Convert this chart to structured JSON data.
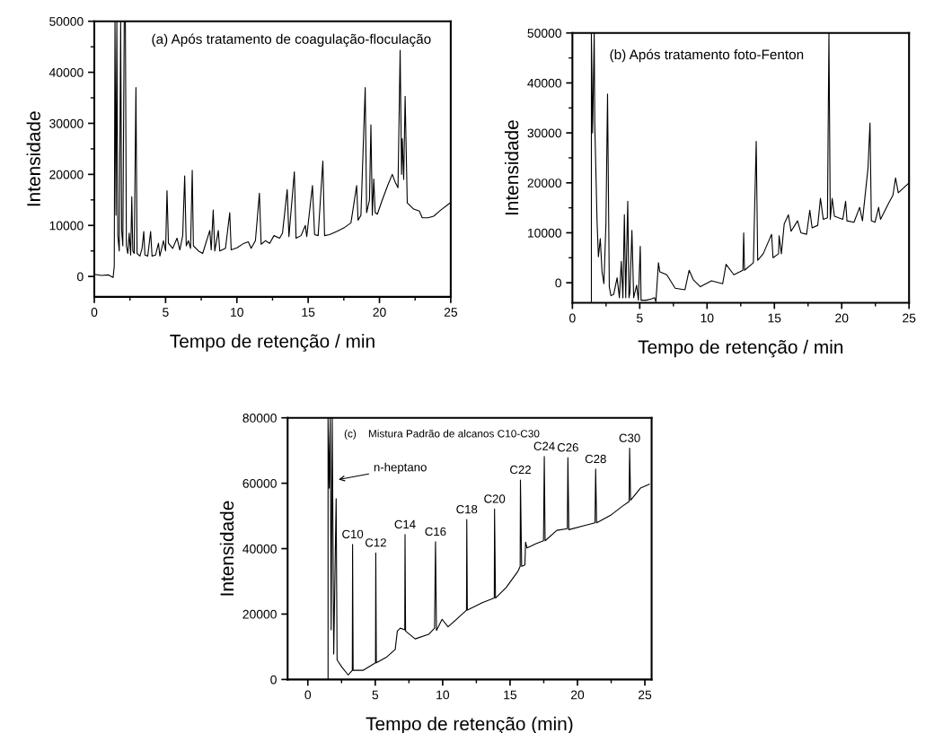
{
  "chart_data": [
    {
      "type": "line",
      "xlabel": "Tempo de retenção / min",
      "ylabel": "Intensidade",
      "annotations": [
        "(a) Após tratamento de coagulação-floculação"
      ],
      "xlim": [
        0,
        25
      ],
      "ylim": [
        -4000,
        50000
      ],
      "xticks": [
        0,
        {
          "value": 2.5,
          "label": null
        },
        5,
        {
          "value": 7.5,
          "label": null
        },
        10,
        {
          "value": 12.5,
          "label": null
        },
        15,
        {
          "value": 17.5,
          "label": null
        },
        20,
        {
          "value": 22.5,
          "label": null
        },
        25
      ],
      "yticks": [
        0,
        {
          "value": 5000,
          "label": null
        },
        10000,
        {
          "value": 15000,
          "label": null
        },
        20000,
        {
          "value": 25000,
          "label": null
        },
        30000,
        {
          "value": 35000,
          "label": null
        },
        40000,
        {
          "value": 45000,
          "label": null
        },
        50000
      ],
      "grid": false,
      "legend": false,
      "marker": "none",
      "line_style": "solid",
      "series": [
        {
          "color": "#000000",
          "x": [
            0,
            0.5,
            1.0,
            1.32,
            1.4,
            1.45,
            1.52,
            1.58,
            1.65,
            1.75,
            1.85,
            1.92,
            2.0,
            2.1,
            2.18,
            2.25,
            2.35,
            2.45,
            2.55,
            2.63,
            2.7,
            2.8,
            2.92,
            3.0,
            3.2,
            3.35,
            3.47,
            3.55,
            3.75,
            3.95,
            4.05,
            4.3,
            4.5,
            4.6,
            4.85,
            5.0,
            5.1,
            5.2,
            5.5,
            5.8,
            6.0,
            6.2,
            6.34,
            6.45,
            6.6,
            6.75,
            6.87,
            6.95,
            7.3,
            7.6,
            8.1,
            8.2,
            8.34,
            8.45,
            8.7,
            8.8,
            9.2,
            9.5,
            9.6,
            10.0,
            10.5,
            10.8,
            11.0,
            11.3,
            11.58,
            11.7,
            12.0,
            12.3,
            12.6,
            13.0,
            13.2,
            13.53,
            13.65,
            14.03,
            14.15,
            14.5,
            14.8,
            14.9,
            15.3,
            15.45,
            15.7,
            16.03,
            16.15,
            16.5,
            17.0,
            17.5,
            18.0,
            18.4,
            18.5,
            18.7,
            19.0,
            19.1,
            19.3,
            19.4,
            19.5,
            19.6,
            19.7,
            19.85,
            20.2,
            20.6,
            20.9,
            21.1,
            21.3,
            21.45,
            21.55,
            21.6,
            21.7,
            21.8,
            21.95,
            22.4,
            22.8,
            23.0,
            23.4,
            23.8,
            24.3,
            25.0
          ],
          "values": [
            400,
            200,
            300,
            -200,
            2000,
            50000,
            12000,
            50000,
            8000,
            5000,
            50000,
            9000,
            6000,
            50000,
            50000,
            6000,
            4500,
            8500,
            4200,
            15600,
            5000,
            4500,
            37000,
            4500,
            4000,
            5500,
            8800,
            4200,
            4000,
            8800,
            4000,
            4200,
            6500,
            4000,
            7000,
            5000,
            16800,
            6500,
            5500,
            7500,
            5200,
            8000,
            19700,
            6000,
            7000,
            5500,
            20800,
            6000,
            5000,
            4500,
            9000,
            5200,
            13000,
            5000,
            9000,
            5000,
            5500,
            12500,
            5200,
            5600,
            6500,
            6800,
            5500,
            7000,
            16300,
            6300,
            7000,
            6500,
            8000,
            7500,
            8500,
            17000,
            7800,
            20500,
            7500,
            8000,
            10000,
            7800,
            17800,
            8200,
            8000,
            22600,
            8000,
            8200,
            8800,
            9500,
            10500,
            17800,
            11000,
            12000,
            37000,
            12500,
            15000,
            29700,
            12000,
            19100,
            12500,
            12200,
            15000,
            18000,
            20000,
            18500,
            17400,
            44300,
            20000,
            27000,
            19000,
            35300,
            14400,
            13200,
            12800,
            11500,
            11500,
            11800,
            13000,
            14500
          ]
        }
      ]
    },
    {
      "type": "line",
      "xlabel": "Tempo de retenção / min",
      "ylabel": "Intensidade",
      "annotations": [
        "(b) Após tratamento foto-Fenton"
      ],
      "xlim": [
        0,
        25
      ],
      "ylim": [
        -4000,
        50000
      ],
      "xticks": [
        0,
        {
          "value": 2.5,
          "label": null
        },
        5,
        {
          "value": 7.5,
          "label": null
        },
        10,
        {
          "value": 12.5,
          "label": null
        },
        15,
        {
          "value": 17.5,
          "label": null
        },
        20,
        {
          "value": 22.5,
          "label": null
        },
        25
      ],
      "yticks": [
        0,
        {
          "value": 5000,
          "label": null
        },
        10000,
        {
          "value": 15000,
          "label": null
        },
        20000,
        {
          "value": 25000,
          "label": null
        },
        30000,
        {
          "value": 35000,
          "label": null
        },
        40000,
        {
          "value": 45000,
          "label": null
        },
        50000
      ],
      "grid": false,
      "legend": false,
      "marker": "none",
      "line_style": "solid",
      "series": [
        {
          "color": "#000000",
          "x": [
            1.41,
            1.41,
            1.5,
            1.62,
            1.66,
            1.83,
            1.93,
            2.07,
            2.2,
            2.34,
            2.49,
            2.61,
            2.74,
            2.86,
            3.07,
            3.32,
            3.49,
            3.63,
            3.75,
            3.86,
            3.96,
            4.11,
            4.2,
            4.27,
            4.42,
            4.55,
            4.77,
            4.9,
            5.04,
            5.1,
            5.5,
            5.9,
            6.1,
            6.2,
            6.39,
            6.49,
            7.01,
            7.63,
            8.36,
            8.67,
            8.98,
            9.5,
            10.33,
            11.16,
            11.41,
            11.99,
            12.66,
            12.72,
            12.78,
            13.44,
            13.65,
            13.76,
            14.17,
            14.79,
            14.9,
            15.31,
            15.35,
            15.52,
            15.73,
            16.04,
            16.24,
            16.72,
            16.97,
            17.39,
            17.63,
            17.8,
            18.22,
            18.42,
            18.63,
            18.94,
            19.05,
            19.15,
            19.29,
            19.46,
            20.08,
            20.29,
            20.39,
            20.91,
            21.33,
            21.54,
            21.95,
            22.1,
            22.2,
            22.47,
            22.74,
            22.88,
            23.5,
            23.8,
            24.0,
            24.2,
            24.6,
            25.0
          ],
          "values": [
            -4000,
            50000,
            30000,
            50000,
            32000,
            12400,
            5200,
            8800,
            2200,
            -200,
            11800,
            37800,
            -800,
            -2600,
            -2300,
            1000,
            -3000,
            4300,
            -3000,
            13600,
            -3000,
            16300,
            -3000,
            -2000,
            10500,
            -3000,
            -500,
            -3500,
            7300,
            -3500,
            -3500,
            -3200,
            -3000,
            -3800,
            4000,
            2200,
            1600,
            -1100,
            -1400,
            2500,
            600,
            -800,
            400,
            -200,
            3700,
            1600,
            2500,
            10000,
            2500,
            4000,
            28300,
            4500,
            5800,
            9700,
            5000,
            5800,
            9400,
            5800,
            11800,
            13600,
            10300,
            12400,
            10000,
            9700,
            14500,
            11000,
            11500,
            16900,
            12700,
            13000,
            50000,
            12700,
            16900,
            13300,
            12700,
            16300,
            12400,
            12100,
            15100,
            12400,
            22900,
            32000,
            12400,
            12100,
            15100,
            12700,
            16000,
            17500,
            21000,
            18000,
            19000,
            20000
          ]
        }
      ]
    },
    {
      "type": "line",
      "xlabel": "Tempo de retenção (min)",
      "ylabel": "Intensidade",
      "annotations": [
        "(c)    Mistura Padrão de alcanos C10-C30",
        {
          "text": "n-heptano",
          "x": 2.1,
          "y": 61000
        },
        {
          "text": "C10",
          "x": 3.32,
          "y": 41300
        },
        {
          "text": "C12",
          "x": 5.04,
          "y": 38700
        },
        {
          "text": "C14",
          "x": 7.21,
          "y": 44300
        },
        {
          "text": "C16",
          "x": 9.47,
          "y": 42100
        },
        {
          "text": "C18",
          "x": 11.79,
          "y": 48900
        },
        {
          "text": "C20",
          "x": 13.85,
          "y": 52100
        },
        {
          "text": "C22",
          "x": 15.77,
          "y": 61000
        },
        {
          "text": "C24",
          "x": 17.54,
          "y": 68200
        },
        {
          "text": "C26",
          "x": 19.29,
          "y": 67800
        },
        {
          "text": "C28",
          "x": 21.35,
          "y": 64300
        },
        {
          "text": "C30",
          "x": 23.87,
          "y": 70700
        }
      ],
      "xlim": [
        -1.5,
        25.5
      ],
      "ylim": [
        0,
        80000
      ],
      "xticks": [
        0,
        {
          "value": 2.5,
          "label": null
        },
        5,
        {
          "value": 7.5,
          "label": null
        },
        10,
        {
          "value": 12.5,
          "label": null
        },
        15,
        {
          "value": 17.5,
          "label": null
        },
        20,
        {
          "value": 22.5,
          "label": null
        },
        25
      ],
      "yticks": [
        0,
        20000,
        40000,
        60000,
        80000
      ],
      "grid": false,
      "legend": false,
      "marker": "none",
      "line_style": "solid",
      "series": [
        {
          "color": "#000000",
          "x": [
            1.5,
            1.5,
            1.59,
            1.66,
            1.73,
            1.81,
            1.92,
            2.1,
            2.17,
            2.54,
            2.99,
            3.3,
            3.32,
            3.36,
            4.09,
            5.02,
            5.04,
            5.08,
            5.86,
            6.48,
            6.64,
            6.86,
            7.19,
            7.21,
            7.25,
            7.96,
            8.96,
            9.4,
            9.47,
            9.54,
            9.96,
            10.4,
            11.4,
            11.77,
            11.79,
            11.83,
            12.94,
            13.83,
            13.85,
            13.92,
            14.71,
            15.6,
            15.75,
            15.77,
            15.86,
            16.1,
            16.15,
            16.26,
            16.92,
            17.48,
            17.54,
            17.6,
            18.47,
            19.25,
            19.29,
            19.36,
            20.46,
            21.3,
            21.35,
            21.42,
            22.46,
            23.34,
            23.83,
            23.87,
            23.94,
            24.67,
            25.33
          ],
          "values": [
            0,
            80000,
            58500,
            80000,
            15200,
            80000,
            7800,
            55300,
            6000,
            3700,
            1400,
            2800,
            41300,
            2800,
            2800,
            5100,
            38700,
            5100,
            6900,
            9200,
            14800,
            15700,
            15200,
            44300,
            14800,
            12400,
            13800,
            15700,
            42100,
            15000,
            18400,
            16100,
            19800,
            21200,
            48900,
            21200,
            23500,
            24900,
            52100,
            24900,
            28100,
            33200,
            34600,
            61000,
            34600,
            35000,
            42000,
            40200,
            41500,
            42400,
            68200,
            42400,
            45600,
            46100,
            67800,
            45800,
            47000,
            47900,
            64300,
            47900,
            50200,
            53000,
            54400,
            70700,
            54800,
            58500,
            59700
          ]
        }
      ]
    }
  ]
}
